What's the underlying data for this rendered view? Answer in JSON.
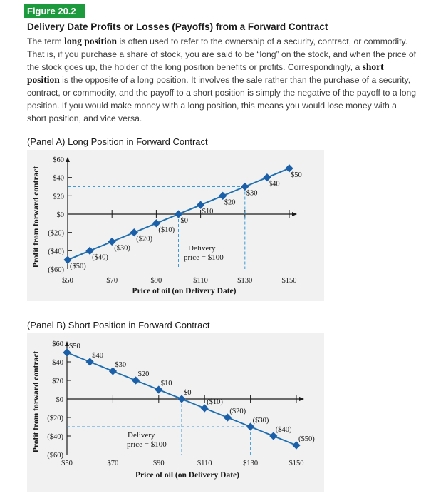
{
  "figure_tag": "Figure 20.2",
  "figure_title": "Delivery Date Profits or Losses (Payoffs) from a Forward Contract",
  "paragraph": {
    "p1": "The term ",
    "b1": "long position",
    "p2": " is often used to refer to the ownership of a security, contract, or commodity. That is, if you purchase a share of stock, you are said to be “long” on the stock, and when the price of the stock goes up, the holder of the long position benefits or profits. Correspondingly, a ",
    "b2": "short position",
    "p3": " is the opposite of a long position. It involves the sale rather than the purchase of a security, contract, or commodity, and the payoff to a short position is simply the negative of the payoff to a long position. If you would make money with a long position, this means you would lose money with a short position, and vice versa."
  },
  "chart_data": [
    {
      "type": "line",
      "title": "(Panel A) Long Position in Forward Contract",
      "xlabel": "Price of oil (on Delivery Date)",
      "ylabel": "Profit from forward contract",
      "x_tick_labels": [
        "$50",
        "$70",
        "$90",
        "$110",
        "$130",
        "$150"
      ],
      "y_tick_labels": [
        "$60",
        "$40",
        "$20",
        "$0",
        "($20)",
        "($40)",
        "($60)"
      ],
      "xlim": [
        50,
        150
      ],
      "ylim": [
        -60,
        60
      ],
      "x": [
        50,
        60,
        70,
        80,
        90,
        100,
        110,
        120,
        130,
        140,
        150
      ],
      "y": [
        -50,
        -40,
        -30,
        -20,
        -10,
        0,
        10,
        20,
        30,
        40,
        50
      ],
      "point_labels": [
        "($50)",
        "($40)",
        "($30)",
        "($20)",
        "($10)",
        "$0",
        "$10",
        "$20",
        "$30",
        "$40",
        "$50"
      ],
      "annotation": {
        "line1": "Delivery",
        "line2": "price = $100"
      },
      "color": "#1f6fb0"
    },
    {
      "type": "line",
      "title": "(Panel B) Short Position in Forward Contract",
      "xlabel": "Price of oil (on Delivery Date)",
      "ylabel": "Profit from forward contract",
      "x_tick_labels": [
        "$50",
        "$70",
        "$90",
        "$110",
        "$130",
        "$150"
      ],
      "y_tick_labels": [
        "$60",
        "$40",
        "$20",
        "$0",
        "($20)",
        "($40)",
        "($60)"
      ],
      "xlim": [
        50,
        150
      ],
      "ylim": [
        -60,
        60
      ],
      "x": [
        50,
        60,
        70,
        80,
        90,
        100,
        110,
        120,
        130,
        140,
        150
      ],
      "y": [
        50,
        40,
        30,
        20,
        10,
        0,
        -10,
        -20,
        -30,
        -40,
        -50
      ],
      "point_labels": [
        "$50",
        "$40",
        "$30",
        "$20",
        "$10",
        "$0",
        "($10)",
        "($20)",
        "($30)",
        "($40)",
        "($50)"
      ],
      "annotation": {
        "line1": "Delivery",
        "line2": "price = $100"
      },
      "color": "#1f6fb0"
    }
  ]
}
